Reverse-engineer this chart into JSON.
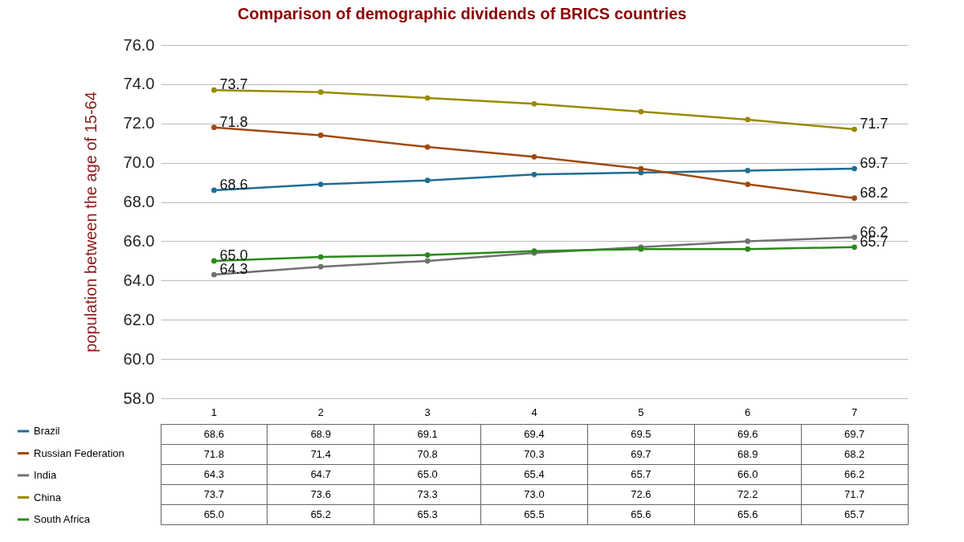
{
  "chart_data": {
    "type": "line",
    "title": "Comparison of demographic dividends of BRICS countries",
    "ylabel": "population between the age of 15-64",
    "categories": [
      "1",
      "2",
      "3",
      "4",
      "5",
      "6",
      "7"
    ],
    "ylim": [
      58,
      76
    ],
    "yticks": [
      {
        "value": 58,
        "label": "58.0"
      },
      {
        "value": 60,
        "label": "60.0"
      },
      {
        "value": 62,
        "label": "62.0"
      },
      {
        "value": 64,
        "label": "64.0"
      },
      {
        "value": 66,
        "label": "66.0"
      },
      {
        "value": 68,
        "label": "68.0"
      },
      {
        "value": 70,
        "label": "70.0"
      },
      {
        "value": 72,
        "label": "72.0"
      },
      {
        "value": 74,
        "label": "74.0"
      },
      {
        "value": 76,
        "label": "76.0"
      }
    ],
    "grid": "y",
    "legend": "bottom",
    "marker": "circle",
    "series": [
      {
        "name": "Brazil",
        "color": "#1f6e94",
        "values": [
          68.6,
          68.9,
          69.1,
          69.4,
          69.5,
          69.6,
          69.7
        ],
        "value_labels": [
          "68.6",
          "68.9",
          "69.1",
          "69.4",
          "69.5",
          "69.6",
          "69.7"
        ]
      },
      {
        "name": "Russian Federation",
        "color": "#a0490f",
        "values": [
          71.8,
          71.4,
          70.8,
          70.3,
          69.7,
          68.9,
          68.2
        ],
        "value_labels": [
          "71.8",
          "71.4",
          "70.8",
          "70.3",
          "69.7",
          "68.9",
          "68.2"
        ]
      },
      {
        "name": "India",
        "color": "#707070",
        "values": [
          64.3,
          64.7,
          65.0,
          65.4,
          65.7,
          66.0,
          66.2
        ],
        "value_labels": [
          "64.3",
          "64.7",
          "65.0",
          "65.4",
          "65.7",
          "66.0",
          "66.2"
        ]
      },
      {
        "name": "China",
        "color": "#9a8a00",
        "values": [
          73.7,
          73.6,
          73.3,
          73.0,
          72.6,
          72.2,
          71.7
        ],
        "value_labels": [
          "73.7",
          "73.6",
          "73.3",
          "73.0",
          "72.6",
          "72.2",
          "71.7"
        ]
      },
      {
        "name": "South Africa",
        "color": "#2a8a1a",
        "values": [
          65.0,
          65.2,
          65.3,
          65.5,
          65.6,
          65.6,
          65.7
        ],
        "value_labels": [
          "65.0",
          "65.2",
          "65.3",
          "65.5",
          "65.6",
          "65.6",
          "65.7"
        ]
      }
    ]
  }
}
